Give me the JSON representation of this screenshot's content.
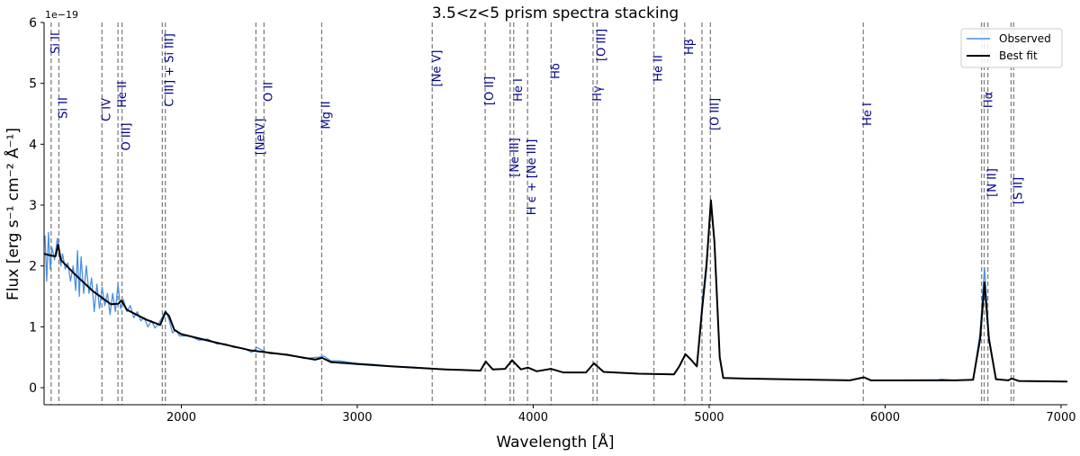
{
  "chart_data": {
    "type": "line",
    "title": "3.5<z<5 prism spectra stacking",
    "xlabel": "Wavelength [Å]",
    "ylabel": "Flux  [erg s⁻¹ cm⁻² Å⁻¹]",
    "y_offset_label": "1e−19",
    "xlim": [
      1220,
      7036
    ],
    "ylim": [
      -0.28,
      6
    ],
    "xticks": [
      2000,
      3000,
      4000,
      5000,
      6000,
      7000
    ],
    "yticks": [
      0,
      1,
      2,
      3,
      4,
      5,
      6
    ],
    "grid": false,
    "legend_placement": "top-right",
    "colors": {
      "observed": "#4a90e2",
      "best_fit": "#000000",
      "line_marker": "#808080",
      "line_label": "#00008b"
    },
    "series": [
      {
        "name": "Observed",
        "points": [
          [
            1225,
            2.5
          ],
          [
            1235,
            1.75
          ],
          [
            1245,
            2.55
          ],
          [
            1255,
            1.95
          ],
          [
            1265,
            2.3
          ],
          [
            1280,
            2.1
          ],
          [
            1295,
            2.45
          ],
          [
            1305,
            2.3
          ],
          [
            1315,
            2.0
          ],
          [
            1325,
            2.2
          ],
          [
            1340,
            1.95
          ],
          [
            1355,
            2.05
          ],
          [
            1370,
            1.75
          ],
          [
            1385,
            2.0
          ],
          [
            1400,
            1.6
          ],
          [
            1410,
            2.25
          ],
          [
            1420,
            1.5
          ],
          [
            1430,
            2.15
          ],
          [
            1445,
            1.55
          ],
          [
            1460,
            2.0
          ],
          [
            1475,
            1.55
          ],
          [
            1490,
            1.8
          ],
          [
            1505,
            1.25
          ],
          [
            1520,
            1.7
          ],
          [
            1535,
            1.3
          ],
          [
            1550,
            1.65
          ],
          [
            1565,
            1.35
          ],
          [
            1580,
            1.55
          ],
          [
            1595,
            1.2
          ],
          [
            1610,
            1.55
          ],
          [
            1625,
            1.25
          ],
          [
            1640,
            1.7
          ],
          [
            1655,
            1.3
          ],
          [
            1670,
            1.45
          ],
          [
            1690,
            1.25
          ],
          [
            1710,
            1.35
          ],
          [
            1730,
            1.15
          ],
          [
            1750,
            1.25
          ],
          [
            1770,
            1.1
          ],
          [
            1790,
            1.15
          ],
          [
            1810,
            1.0
          ],
          [
            1830,
            1.1
          ],
          [
            1850,
            0.98
          ],
          [
            1870,
            1.05
          ],
          [
            1890,
            1.15
          ],
          [
            1910,
            1.27
          ],
          [
            1930,
            1.12
          ],
          [
            1950,
            0.9
          ],
          [
            1970,
            0.95
          ],
          [
            1990,
            0.85
          ],
          [
            2050,
            0.85
          ],
          [
            2100,
            0.78
          ],
          [
            2150,
            0.8
          ],
          [
            2200,
            0.72
          ],
          [
            2250,
            0.72
          ],
          [
            2300,
            0.66
          ],
          [
            2350,
            0.65
          ],
          [
            2400,
            0.58
          ],
          [
            2430,
            0.66
          ],
          [
            2470,
            0.6
          ],
          [
            2500,
            0.56
          ],
          [
            2600,
            0.55
          ],
          [
            2700,
            0.48
          ],
          [
            2780,
            0.5
          ],
          [
            2810,
            0.52
          ],
          [
            2850,
            0.44
          ],
          [
            2900,
            0.44
          ],
          [
            3000,
            0.4
          ],
          [
            3100,
            0.38
          ],
          [
            3200,
            0.35
          ],
          [
            3300,
            0.34
          ],
          [
            3500,
            0.3
          ],
          [
            3700,
            0.28
          ],
          [
            3730,
            0.44
          ],
          [
            3770,
            0.3
          ],
          [
            3840,
            0.31
          ],
          [
            3880,
            0.46
          ],
          [
            3930,
            0.3
          ],
          [
            3970,
            0.33
          ],
          [
            4020,
            0.27
          ],
          [
            4100,
            0.31
          ],
          [
            4170,
            0.25
          ],
          [
            4300,
            0.25
          ],
          [
            4345,
            0.41
          ],
          [
            4400,
            0.26
          ],
          [
            4600,
            0.23
          ],
          [
            4800,
            0.22
          ],
          [
            4830,
            0.35
          ],
          [
            4865,
            0.55
          ],
          [
            4900,
            0.45
          ],
          [
            4930,
            0.35
          ],
          [
            4960,
            1.4
          ],
          [
            4985,
            2.1
          ],
          [
            5010,
            2.95
          ],
          [
            5030,
            2.4
          ],
          [
            5060,
            0.5
          ],
          [
            5080,
            0.16
          ],
          [
            5200,
            0.15
          ],
          [
            5800,
            0.12
          ],
          [
            5880,
            0.17
          ],
          [
            5920,
            0.12
          ],
          [
            6300,
            0.13
          ],
          [
            6320,
            0.14
          ],
          [
            6400,
            0.12
          ],
          [
            6500,
            0.13
          ],
          [
            6540,
            0.9
          ],
          [
            6565,
            1.97
          ],
          [
            6590,
            0.85
          ],
          [
            6630,
            0.14
          ],
          [
            6700,
            0.12
          ],
          [
            6720,
            0.15
          ],
          [
            6760,
            0.11
          ],
          [
            7036,
            0.1
          ]
        ]
      },
      {
        "name": "Best fit",
        "points": [
          [
            1220,
            2.2
          ],
          [
            1260,
            2.17
          ],
          [
            1285,
            2.16
          ],
          [
            1300,
            2.35
          ],
          [
            1315,
            2.1
          ],
          [
            1400,
            1.85
          ],
          [
            1500,
            1.58
          ],
          [
            1600,
            1.37
          ],
          [
            1640,
            1.38
          ],
          [
            1660,
            1.43
          ],
          [
            1690,
            1.28
          ],
          [
            1800,
            1.12
          ],
          [
            1880,
            1.03
          ],
          [
            1910,
            1.24
          ],
          [
            1930,
            1.18
          ],
          [
            1960,
            0.95
          ],
          [
            2000,
            0.88
          ],
          [
            2200,
            0.74
          ],
          [
            2400,
            0.61
          ],
          [
            2600,
            0.54
          ],
          [
            2760,
            0.46
          ],
          [
            2800,
            0.49
          ],
          [
            2850,
            0.42
          ],
          [
            3000,
            0.39
          ],
          [
            3200,
            0.35
          ],
          [
            3500,
            0.3
          ],
          [
            3700,
            0.28
          ],
          [
            3730,
            0.43
          ],
          [
            3770,
            0.3
          ],
          [
            3840,
            0.31
          ],
          [
            3880,
            0.45
          ],
          [
            3930,
            0.3
          ],
          [
            3970,
            0.33
          ],
          [
            4020,
            0.27
          ],
          [
            4100,
            0.31
          ],
          [
            4170,
            0.25
          ],
          [
            4300,
            0.25
          ],
          [
            4345,
            0.4
          ],
          [
            4400,
            0.26
          ],
          [
            4600,
            0.23
          ],
          [
            4800,
            0.22
          ],
          [
            4830,
            0.35
          ],
          [
            4865,
            0.55
          ],
          [
            4900,
            0.45
          ],
          [
            4930,
            0.35
          ],
          [
            4960,
            1.3
          ],
          [
            4985,
            2.0
          ],
          [
            5010,
            3.08
          ],
          [
            5030,
            2.4
          ],
          [
            5060,
            0.5
          ],
          [
            5080,
            0.16
          ],
          [
            5200,
            0.15
          ],
          [
            5800,
            0.12
          ],
          [
            5880,
            0.17
          ],
          [
            5920,
            0.12
          ],
          [
            6400,
            0.12
          ],
          [
            6500,
            0.13
          ],
          [
            6540,
            0.8
          ],
          [
            6565,
            1.73
          ],
          [
            6590,
            0.8
          ],
          [
            6630,
            0.14
          ],
          [
            6700,
            0.12
          ],
          [
            6720,
            0.15
          ],
          [
            6760,
            0.11
          ],
          [
            7036,
            0.1
          ]
        ]
      }
    ],
    "emission_lines": [
      {
        "label": "Si II",
        "wavelengths": [
          1260
        ]
      },
      {
        "label": "Si II",
        "wavelengths": [
          1304
        ]
      },
      {
        "label": "C IV",
        "wavelengths": [
          1549
        ]
      },
      {
        "label": "O III]",
        "wavelengths": [
          1663
        ]
      },
      {
        "label": "He II",
        "wavelengths": [
          1640
        ]
      },
      {
        "label": "C III] + Si III]",
        "wavelengths": [
          1892,
          1909
        ]
      },
      {
        "label": "[NeIV]",
        "wavelengths": [
          2424
        ]
      },
      {
        "label": "O II",
        "wavelengths": [
          2470
        ]
      },
      {
        "label": "Mg II",
        "wavelengths": [
          2798
        ]
      },
      {
        "label": "[Ne V]",
        "wavelengths": [
          3426
        ]
      },
      {
        "label": "[O II]",
        "wavelengths": [
          3727
        ]
      },
      {
        "label": "[Ne III]",
        "wavelengths": [
          3869
        ]
      },
      {
        "label": "He I",
        "wavelengths": [
          3889
        ]
      },
      {
        "label": "H ϵ + [Ne III]",
        "wavelengths": [
          3968
        ]
      },
      {
        "label": "Hδ",
        "wavelengths": [
          4102
        ]
      },
      {
        "label": "Hγ",
        "wavelengths": [
          4340
        ]
      },
      {
        "label": "[O III]",
        "wavelengths": [
          4363
        ]
      },
      {
        "label": "He II",
        "wavelengths": [
          4686
        ]
      },
      {
        "label": "Hβ",
        "wavelengths": [
          4861
        ]
      },
      {
        "label": "[O III]",
        "wavelengths": [
          4959,
          5007
        ]
      },
      {
        "label": "He I",
        "wavelengths": [
          5876
        ]
      },
      {
        "label": "Hα",
        "wavelengths": [
          6563
        ]
      },
      {
        "label": "[N II]",
        "wavelengths": [
          6548,
          6584
        ]
      },
      {
        "label": "[S II]",
        "wavelengths": [
          6716,
          6731
        ]
      }
    ]
  }
}
